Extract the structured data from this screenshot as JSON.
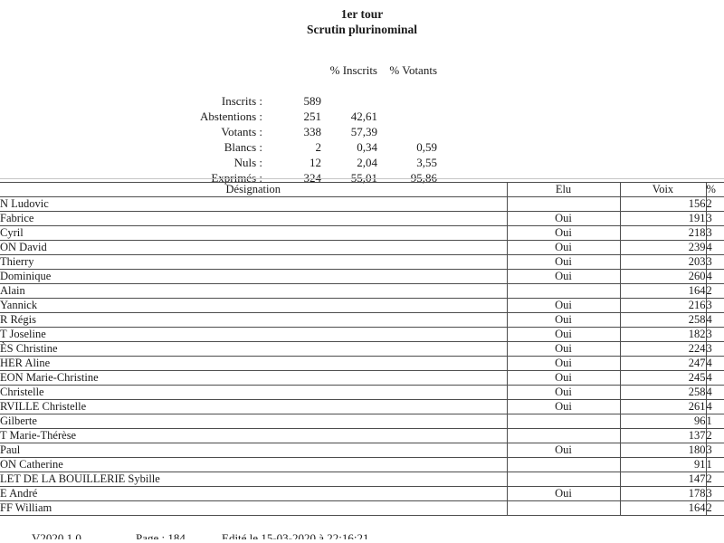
{
  "title": {
    "line1": "1er tour",
    "line2": "Scrutin plurinominal"
  },
  "summary": {
    "col_headers": {
      "pct_inscrits": "% Inscrits",
      "pct_votants": "% Votants"
    },
    "rows": [
      {
        "label": "Inscrits :",
        "value": "589",
        "pct_inscrits": "",
        "pct_votants": ""
      },
      {
        "label": "Abstentions :",
        "value": "251",
        "pct_inscrits": "42,61",
        "pct_votants": ""
      },
      {
        "label": "Votants :",
        "value": "338",
        "pct_inscrits": "57,39",
        "pct_votants": ""
      },
      {
        "label": "Blancs :",
        "value": "2",
        "pct_inscrits": "0,34",
        "pct_votants": "0,59"
      },
      {
        "label": "Nuls :",
        "value": "12",
        "pct_inscrits": "2,04",
        "pct_votants": "3,55"
      },
      {
        "label": "Exprimés :",
        "value": "324",
        "pct_inscrits": "55,01",
        "pct_votants": "95,86"
      }
    ]
  },
  "results_table": {
    "headers": {
      "designation": "Désignation",
      "elu": "Elu",
      "voix": "Voix",
      "pct": "%"
    },
    "rows": [
      {
        "designation": "N Ludovic",
        "elu": "",
        "voix": "156",
        "pct": "2"
      },
      {
        "designation": "Fabrice",
        "elu": "Oui",
        "voix": "191",
        "pct": "3"
      },
      {
        "designation": "Cyril",
        "elu": "Oui",
        "voix": "218",
        "pct": "3"
      },
      {
        "designation": "ON David",
        "elu": "Oui",
        "voix": "239",
        "pct": "4"
      },
      {
        "designation": "Thierry",
        "elu": "Oui",
        "voix": "203",
        "pct": "3"
      },
      {
        "designation": "Dominique",
        "elu": "Oui",
        "voix": "260",
        "pct": "4"
      },
      {
        "designation": "Alain",
        "elu": "",
        "voix": "164",
        "pct": "2"
      },
      {
        "designation": "Yannick",
        "elu": "Oui",
        "voix": "216",
        "pct": "3"
      },
      {
        "designation": "R Régis",
        "elu": "Oui",
        "voix": "258",
        "pct": "4"
      },
      {
        "designation": "T Joseline",
        "elu": "Oui",
        "voix": "182",
        "pct": "3"
      },
      {
        "designation": "ÈS Christine",
        "elu": "Oui",
        "voix": "224",
        "pct": "3"
      },
      {
        "designation": "HER Aline",
        "elu": "Oui",
        "voix": "247",
        "pct": "4"
      },
      {
        "designation": "EON Marie-Christine",
        "elu": "Oui",
        "voix": "245",
        "pct": "4"
      },
      {
        "designation": "Christelle",
        "elu": "Oui",
        "voix": "258",
        "pct": "4"
      },
      {
        "designation": "RVILLE Christelle",
        "elu": "Oui",
        "voix": "261",
        "pct": "4"
      },
      {
        "designation": "Gilberte",
        "elu": "",
        "voix": "96",
        "pct": "1"
      },
      {
        "designation": "T Marie-Thérèse",
        "elu": "",
        "voix": "137",
        "pct": "2"
      },
      {
        "designation": "Paul",
        "elu": "Oui",
        "voix": "180",
        "pct": "3"
      },
      {
        "designation": "ON Catherine",
        "elu": "",
        "voix": "91",
        "pct": "1"
      },
      {
        "designation": "LET DE LA BOUILLERIE Sybille",
        "elu": "",
        "voix": "147",
        "pct": "2"
      },
      {
        "designation": "E André",
        "elu": "Oui",
        "voix": "178",
        "pct": "3"
      },
      {
        "designation": "FF William",
        "elu": "",
        "voix": "164",
        "pct": "2"
      }
    ]
  },
  "footer": {
    "version": "V2020.1.0",
    "page": "Page : 184",
    "edited": "Edité le 15-03-2020  à 22:16:21"
  }
}
